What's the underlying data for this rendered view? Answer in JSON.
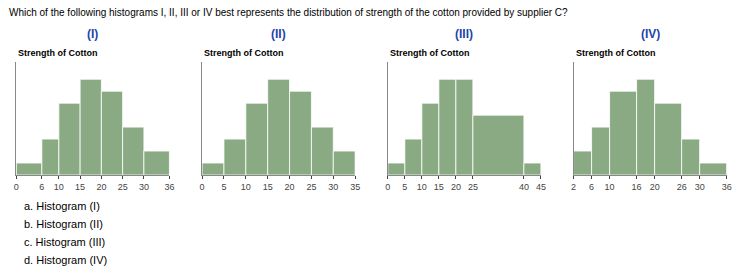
{
  "title": "Which of the following histograms I, II, III or IV best represents the distribution of strength of the cotton provided by supplier C?",
  "annotations": [
    "a. Histogram (I)",
    "b. Histogram (II)",
    "c. Histogram (III)",
    "d. Histogram (IV)"
  ],
  "chart_data": [
    {
      "type": "histogram",
      "title": "(I)",
      "subtitle": "Strength of Cotton",
      "bins": [
        0,
        6,
        10,
        15,
        20,
        25,
        30,
        36
      ],
      "values": [
        1,
        3,
        6,
        8,
        7,
        4,
        2
      ],
      "color": "#8aaa84",
      "xlim": [
        0,
        36
      ],
      "xticks": [
        0,
        6,
        10,
        15,
        20,
        25,
        30,
        36
      ],
      "ylim": [
        0,
        9.44
      ],
      "tick_labels": "x",
      "grid": false
    },
    {
      "type": "histogram",
      "title": "(II)",
      "subtitle": "Strength of Cotton",
      "bins": [
        0,
        5,
        10,
        15,
        20,
        25,
        30,
        35
      ],
      "values": [
        1,
        3,
        6,
        8,
        7,
        4,
        2
      ],
      "color": "#8aaa84",
      "xlim": [
        0,
        35
      ],
      "xticks": [
        0,
        5,
        10,
        15,
        20,
        25,
        30,
        35
      ],
      "ylim": [
        0,
        9.44
      ],
      "tick_labels": "x",
      "grid": false
    },
    {
      "type": "histogram",
      "title": "(III)",
      "subtitle": "Strength of Cotton",
      "bins": [
        0,
        5,
        10,
        15,
        20,
        25,
        40,
        45
      ],
      "values": [
        1,
        3,
        6,
        8,
        8,
        5,
        1
      ],
      "color": "#8aaa84",
      "xlim": [
        0,
        45
      ],
      "xticks": [
        0,
        5,
        10,
        15,
        20,
        25,
        40,
        45
      ],
      "ylim": [
        0,
        9.44
      ],
      "tick_labels": "x",
      "grid": false
    },
    {
      "type": "histogram",
      "title": "(IV)",
      "subtitle": "Strength of Cotton",
      "bins": [
        2,
        6,
        10,
        16,
        20,
        26,
        30,
        36
      ],
      "values": [
        2,
        4,
        7,
        8,
        6,
        3,
        1
      ],
      "color": "#8aaa84",
      "xlim": [
        2,
        36
      ],
      "xticks": [
        2,
        6,
        10,
        16,
        20,
        26,
        30,
        36
      ],
      "ylim": [
        0,
        9.44
      ],
      "tick_labels": "x",
      "grid": false
    }
  ]
}
